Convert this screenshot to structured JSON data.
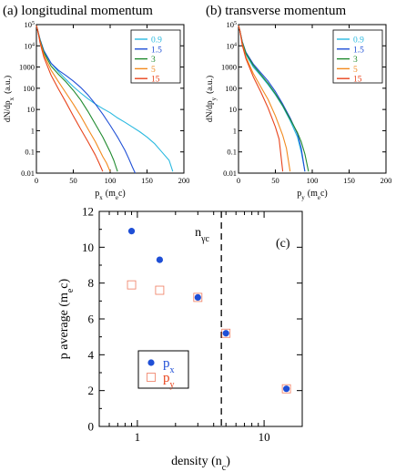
{
  "colors": {
    "c09": "#29b9e0",
    "c15": "#1f4fd6",
    "c3": "#1f8a2e",
    "c5": "#f28a1e",
    "c15b": "#e8431b",
    "px": "#1f4fd6",
    "py": "#e8431b",
    "axis": "#000000"
  },
  "chart_data": [
    {
      "type": "line",
      "panel_label": "(a) longitudinal momentum",
      "xlabel_main": "p",
      "xlabel_sub": "x",
      "xlabel_unit": "(m",
      "xlabel_unit_sub": "e",
      "xlabel_unit_end": "c)",
      "ylabel_main": "dN/dp",
      "ylabel_sub": "x",
      "ylabel_unit": "(a.u.)",
      "xlim": [
        0,
        200
      ],
      "ylog": true,
      "ylim": [
        0.01,
        100000
      ],
      "x_ticks": [
        0,
        50,
        100,
        150,
        200
      ],
      "y_ticks": [
        {
          "value": 100000,
          "base": "10",
          "exp": "5"
        },
        {
          "value": 10000,
          "base": "10",
          "exp": "4"
        },
        {
          "value": 1000,
          "text": "1000"
        },
        {
          "value": 100,
          "text": "100"
        },
        {
          "value": 10,
          "text": "10"
        },
        {
          "value": 1,
          "text": "1"
        },
        {
          "value": 0.1,
          "text": "0.1"
        },
        {
          "value": 0.01,
          "text": "0.01"
        }
      ],
      "legend": [
        "0.9",
        "1.5",
        "3",
        "5",
        "15"
      ],
      "legend_position": "top-right",
      "series": [
        {
          "name": "0.9",
          "color_key": "c09",
          "x": [
            0,
            2,
            5,
            10,
            20,
            30,
            40,
            50,
            60,
            70,
            80,
            90,
            100,
            110,
            120,
            130,
            140,
            150,
            160,
            170,
            180,
            185
          ],
          "y": [
            90000,
            50000,
            20000,
            6000,
            1500,
            600,
            260,
            120,
            60,
            32,
            18,
            11,
            7,
            4,
            2.5,
            1.5,
            0.9,
            0.5,
            0.25,
            0.1,
            0.04,
            0.012
          ]
        },
        {
          "name": "1.5",
          "color_key": "c15",
          "x": [
            0,
            2,
            5,
            10,
            20,
            30,
            40,
            50,
            60,
            70,
            80,
            90,
            100,
            110,
            120,
            125,
            130,
            134
          ],
          "y": [
            90000,
            50000,
            20000,
            6000,
            1500,
            700,
            400,
            220,
            110,
            48,
            18,
            6,
            1.8,
            0.5,
            0.12,
            0.05,
            0.02,
            0.01
          ]
        },
        {
          "name": "3",
          "color_key": "c3",
          "x": [
            0,
            2,
            5,
            10,
            20,
            30,
            40,
            50,
            60,
            70,
            80,
            90,
            100,
            105,
            110
          ],
          "y": [
            90000,
            50000,
            18000,
            5000,
            1100,
            450,
            200,
            80,
            28,
            8,
            2,
            0.5,
            0.1,
            0.04,
            0.012
          ]
        },
        {
          "name": "5",
          "color_key": "c5",
          "x": [
            0,
            2,
            5,
            10,
            20,
            30,
            40,
            50,
            60,
            70,
            80,
            90,
            95,
            100
          ],
          "y": [
            90000,
            50000,
            16000,
            4000,
            700,
            200,
            60,
            18,
            5,
            1.2,
            0.3,
            0.06,
            0.03,
            0.012
          ]
        },
        {
          "name": "15",
          "color_key": "c15b",
          "x": [
            0,
            2,
            5,
            10,
            20,
            30,
            40,
            50,
            60,
            70,
            80,
            85,
            90
          ],
          "y": [
            90000,
            50000,
            14000,
            3000,
            400,
            90,
            22,
            5,
            1.2,
            0.3,
            0.07,
            0.03,
            0.012
          ]
        }
      ]
    },
    {
      "type": "line",
      "panel_label": "(b) transverse momentum",
      "xlabel_main": "p",
      "xlabel_sub": "y",
      "xlabel_unit": "(m",
      "xlabel_unit_sub": "e",
      "xlabel_unit_end": "c)",
      "ylabel_main": "dN/dp",
      "ylabel_sub": "y",
      "ylabel_unit": "(a.u.)",
      "xlim": [
        0,
        200
      ],
      "ylog": true,
      "ylim": [
        0.01,
        100000
      ],
      "x_ticks": [
        0,
        50,
        100,
        150,
        200
      ],
      "y_ticks": [
        {
          "value": 100000,
          "base": "10",
          "exp": "5"
        },
        {
          "value": 10000,
          "base": "10",
          "exp": "4"
        },
        {
          "value": 1000,
          "text": "1000"
        },
        {
          "value": 100,
          "text": "100"
        },
        {
          "value": 10,
          "text": "10"
        },
        {
          "value": 1,
          "text": "1"
        },
        {
          "value": 0.1,
          "text": "0.1"
        },
        {
          "value": 0.01,
          "text": "0.01"
        }
      ],
      "legend": [
        "0.9",
        "1.5",
        "3",
        "5",
        "15"
      ],
      "legend_position": "top-right",
      "series": [
        {
          "name": "0.9",
          "color_key": "c09",
          "x": [
            0,
            2,
            5,
            10,
            20,
            30,
            40,
            50,
            60,
            70,
            80,
            85,
            90
          ],
          "y": [
            90000,
            50000,
            15000,
            4000,
            1000,
            400,
            150,
            50,
            14,
            3,
            0.5,
            0.1,
            0.012
          ]
        },
        {
          "name": "1.5",
          "color_key": "c15",
          "x": [
            0,
            2,
            5,
            10,
            20,
            30,
            40,
            50,
            60,
            70,
            80,
            85,
            90
          ],
          "y": [
            90000,
            50000,
            16000,
            5000,
            1400,
            550,
            220,
            70,
            18,
            4,
            0.7,
            0.15,
            0.012
          ]
        },
        {
          "name": "3",
          "color_key": "c3",
          "x": [
            0,
            2,
            5,
            10,
            20,
            30,
            40,
            50,
            60,
            70,
            80,
            85,
            90,
            95
          ],
          "y": [
            90000,
            50000,
            15000,
            4500,
            1200,
            450,
            170,
            55,
            15,
            3.5,
            0.8,
            0.3,
            0.08,
            0.012
          ]
        },
        {
          "name": "5",
          "color_key": "c5",
          "x": [
            0,
            2,
            5,
            10,
            20,
            30,
            40,
            50,
            60,
            65,
            70
          ],
          "y": [
            90000,
            50000,
            13000,
            3000,
            500,
            120,
            30,
            5,
            0.6,
            0.15,
            0.012
          ]
        },
        {
          "name": "15",
          "color_key": "c15b",
          "x": [
            0,
            2,
            5,
            10,
            20,
            30,
            40,
            50,
            55,
            60
          ],
          "y": [
            90000,
            50000,
            11000,
            2500,
            350,
            70,
            12,
            1.5,
            0.4,
            0.012
          ]
        }
      ]
    },
    {
      "type": "scatter",
      "panel_label": "(c)",
      "xlabel": "density (n",
      "xlabel_sub": "c",
      "xlabel_end": ")",
      "ylabel": "p average (m",
      "ylabel_sub": "e",
      "ylabel_end": "c)",
      "xlog": true,
      "xlim": [
        0.5,
        20
      ],
      "ylim": [
        0,
        12
      ],
      "x_ticks": [
        {
          "value": 1,
          "text": "1"
        },
        {
          "value": 10,
          "text": "10"
        }
      ],
      "y_ticks": [
        0,
        2,
        4,
        6,
        8,
        10,
        12
      ],
      "vline": {
        "x": 4.6,
        "label": "n",
        "label_sub": "γc"
      },
      "legend": [
        {
          "name": "p",
          "sub": "x",
          "marker": "filled-circle",
          "color_key": "px"
        },
        {
          "name": "p",
          "sub": "y",
          "marker": "open-square",
          "color_key": "py"
        }
      ],
      "legend_position": "lower-left",
      "series": [
        {
          "name": "px",
          "marker": "filled-circle",
          "color_key": "px",
          "x": [
            0.9,
            1.5,
            3,
            5,
            15
          ],
          "y": [
            10.9,
            9.3,
            7.2,
            5.2,
            2.1
          ]
        },
        {
          "name": "py",
          "marker": "open-square",
          "color_key": "py",
          "x": [
            0.9,
            1.5,
            3,
            5,
            15
          ],
          "y": [
            7.9,
            7.6,
            7.2,
            5.2,
            2.1
          ]
        }
      ]
    }
  ]
}
